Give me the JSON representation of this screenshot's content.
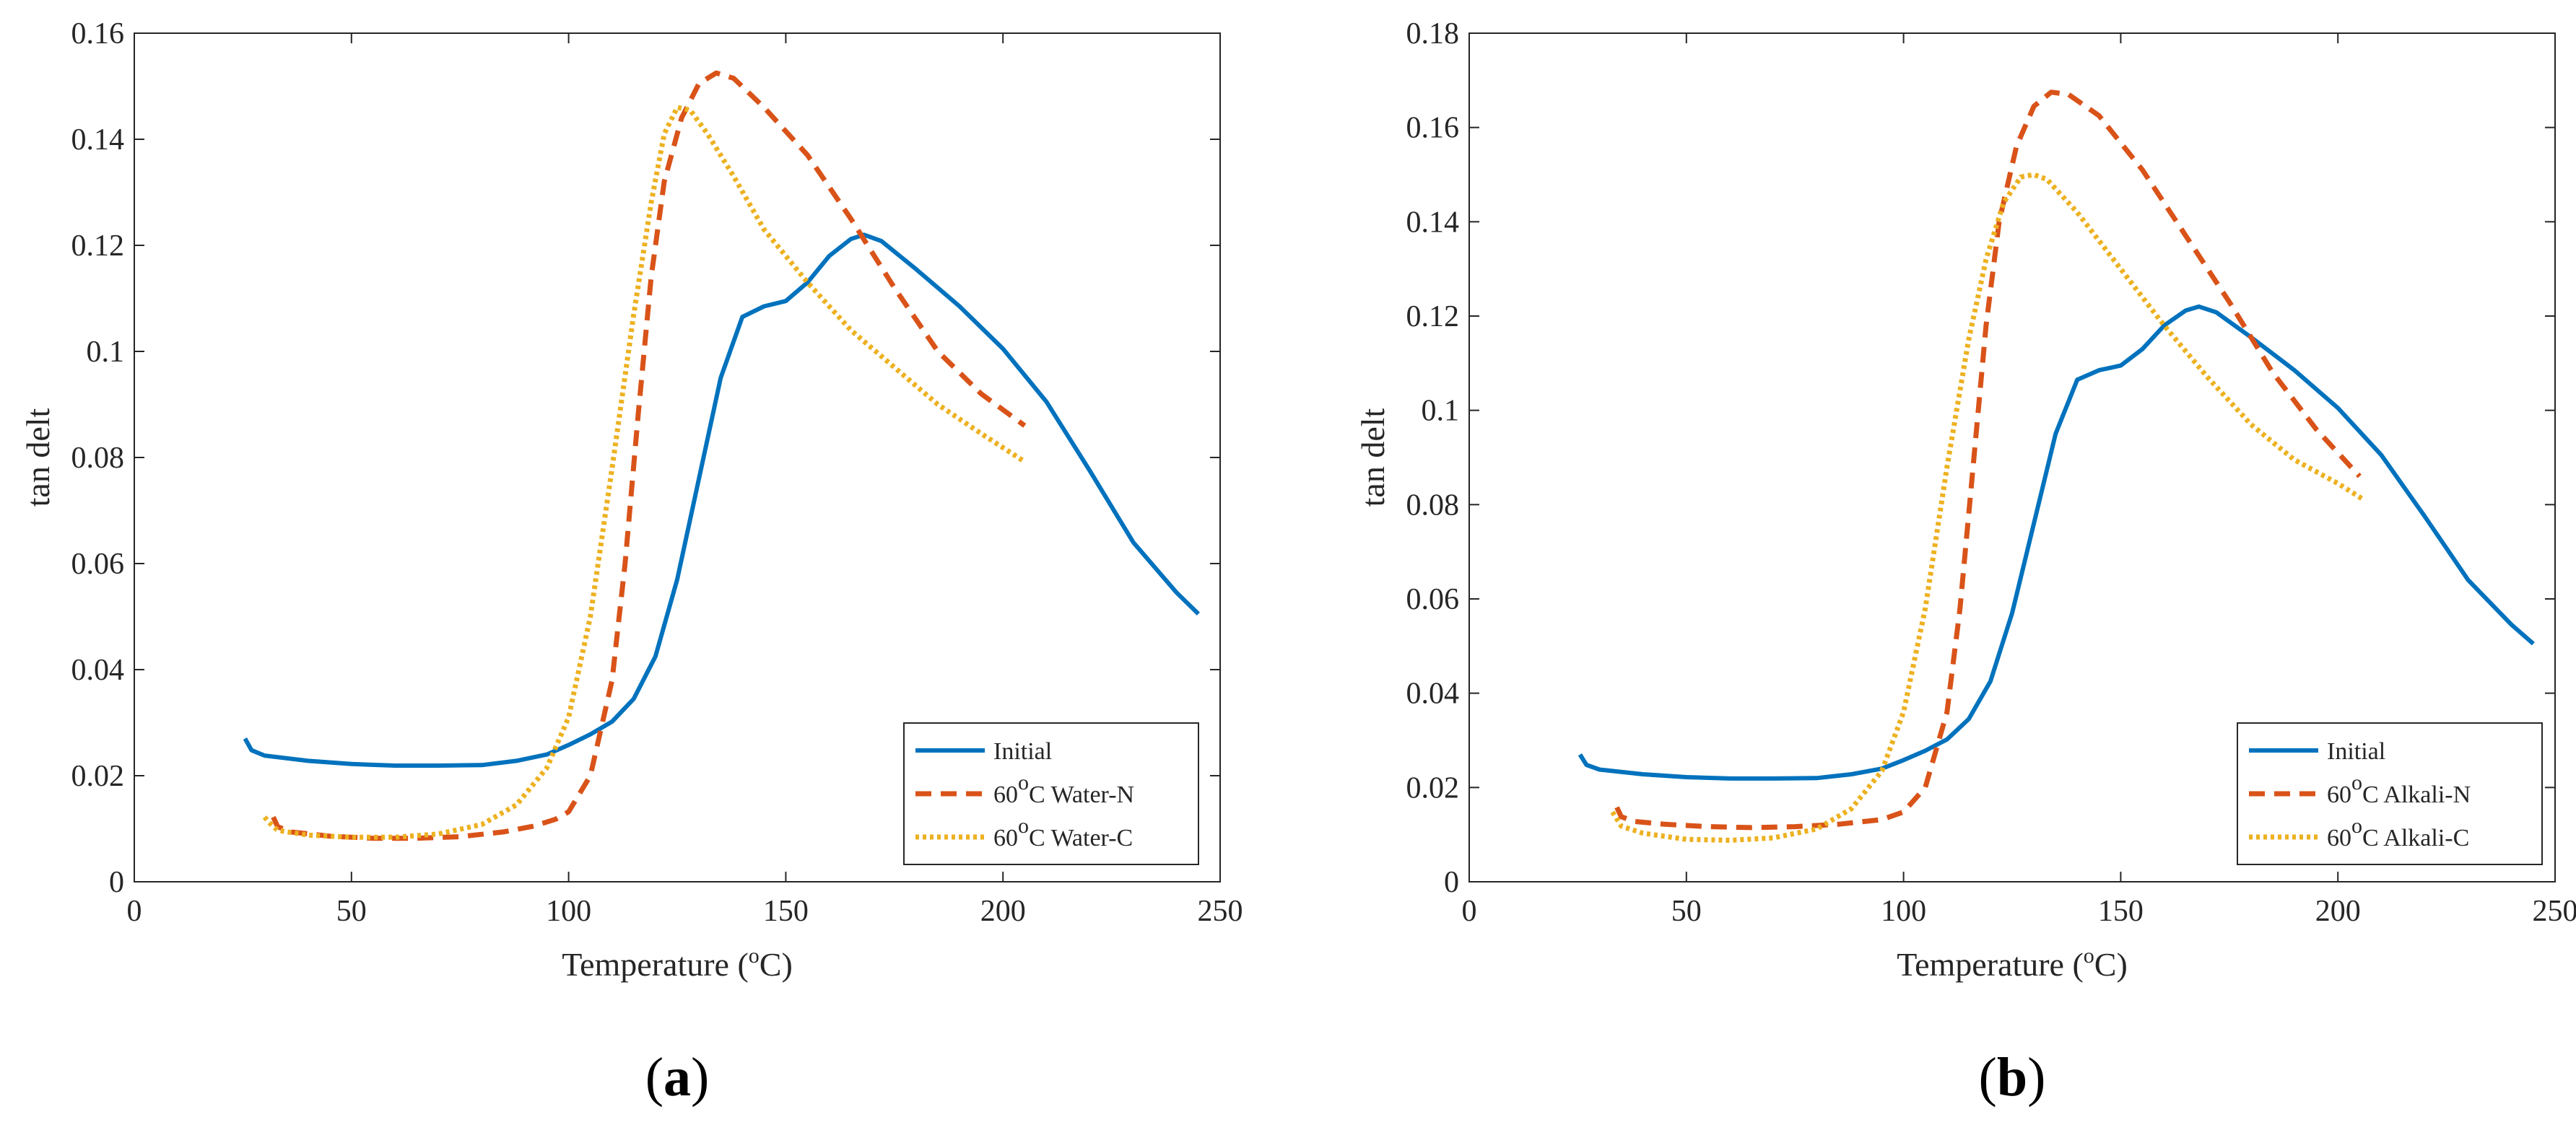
{
  "chart_data": [
    {
      "type": "line",
      "panel_label": "a",
      "xlabel": {
        "text": "Temperature (",
        "sup": "o",
        "unit": "C)"
      },
      "ylabel": "tan delt",
      "xlim": [
        0,
        250
      ],
      "ylim": [
        0,
        0.16
      ],
      "xticks": [
        0,
        50,
        100,
        150,
        200,
        250
      ],
      "xtick_labels": [
        "0",
        "50",
        "100",
        "150",
        "200",
        "250"
      ],
      "yticks": [
        0,
        0.02,
        0.04,
        0.06,
        0.08,
        0.1,
        0.12,
        0.14,
        0.16
      ],
      "ytick_labels": [
        "0",
        "0.02",
        "0.04",
        "0.06",
        "0.08",
        "0.1",
        "0.12",
        "0.14",
        "0.16"
      ],
      "grid": false,
      "legend_position": "bottom-right",
      "series": [
        {
          "name": "Initial",
          "legend": {
            "pre": "Initial",
            "sup": "",
            "post": ""
          },
          "color": "#0072BD",
          "style": "solid",
          "points": [
            [
              25.5,
              0.027
            ],
            [
              27,
              0.0248
            ],
            [
              30,
              0.0238
            ],
            [
              40,
              0.0228
            ],
            [
              50,
              0.0222
            ],
            [
              60,
              0.0219
            ],
            [
              70,
              0.0219
            ],
            [
              80,
              0.022
            ],
            [
              88,
              0.0228
            ],
            [
              95,
              0.024
            ],
            [
              100,
              0.0258
            ],
            [
              105,
              0.0278
            ],
            [
              110,
              0.0302
            ],
            [
              115,
              0.0345
            ],
            [
              120,
              0.0425
            ],
            [
              125,
              0.057
            ],
            [
              130,
              0.076
            ],
            [
              135,
              0.095
            ],
            [
              140,
              0.1065
            ],
            [
              145,
              0.1085
            ],
            [
              150,
              0.1095
            ],
            [
              155,
              0.113
            ],
            [
              160,
              0.118
            ],
            [
              165,
              0.1212
            ],
            [
              168,
              0.122
            ],
            [
              172,
              0.1208
            ],
            [
              180,
              0.1155
            ],
            [
              190,
              0.1085
            ],
            [
              200,
              0.1005
            ],
            [
              210,
              0.0905
            ],
            [
              220,
              0.0775
            ],
            [
              230,
              0.064
            ],
            [
              240,
              0.0545
            ],
            [
              245,
              0.0505
            ]
          ]
        },
        {
          "name": "60°C Water-N",
          "legend": {
            "pre": "60",
            "sup": "o",
            "post": "C Water-N"
          },
          "color": "#D95319",
          "style": "dashed",
          "points": [
            [
              32,
              0.0122
            ],
            [
              33,
              0.0104
            ],
            [
              36,
              0.0094
            ],
            [
              45,
              0.0086
            ],
            [
              55,
              0.0082
            ],
            [
              65,
              0.0082
            ],
            [
              75,
              0.0085
            ],
            [
              85,
              0.0094
            ],
            [
              92,
              0.0105
            ],
            [
              97,
              0.0118
            ],
            [
              100,
              0.0132
            ],
            [
              105,
              0.02
            ],
            [
              110,
              0.038
            ],
            [
              113,
              0.06
            ],
            [
              116,
              0.088
            ],
            [
              119,
              0.114
            ],
            [
              122,
              0.132
            ],
            [
              126,
              0.144
            ],
            [
              130,
              0.1505
            ],
            [
              134,
              0.1525
            ],
            [
              138,
              0.1515
            ],
            [
              145,
              0.146
            ],
            [
              155,
              0.137
            ],
            [
              165,
              0.125
            ],
            [
              175,
              0.112
            ],
            [
              185,
              0.1
            ],
            [
              195,
              0.092
            ],
            [
              205,
              0.086
            ]
          ]
        },
        {
          "name": "60°C Water-C",
          "legend": {
            "pre": "60",
            "sup": "o",
            "post": "C Water-C"
          },
          "color": "#EDB120",
          "style": "dotted",
          "points": [
            [
              30,
              0.0122
            ],
            [
              31,
              0.0112
            ],
            [
              33,
              0.0097
            ],
            [
              40,
              0.0088
            ],
            [
              50,
              0.0084
            ],
            [
              60,
              0.0084
            ],
            [
              70,
              0.009
            ],
            [
              80,
              0.0108
            ],
            [
              88,
              0.0145
            ],
            [
              95,
              0.0215
            ],
            [
              100,
              0.031
            ],
            [
              105,
              0.05
            ],
            [
              110,
              0.078
            ],
            [
              115,
              0.107
            ],
            [
              119,
              0.128
            ],
            [
              122,
              0.141
            ],
            [
              125,
              0.146
            ],
            [
              128,
              0.1455
            ],
            [
              132,
              0.141
            ],
            [
              138,
              0.133
            ],
            [
              145,
              0.123
            ],
            [
              155,
              0.113
            ],
            [
              165,
              0.104
            ],
            [
              175,
              0.097
            ],
            [
              185,
              0.09
            ],
            [
              195,
              0.0845
            ],
            [
              205,
              0.0792
            ]
          ]
        }
      ]
    },
    {
      "type": "line",
      "panel_label": "b",
      "xlabel": {
        "text": "Temperature (",
        "sup": "o",
        "unit": "C)"
      },
      "ylabel": "tan delt",
      "xlim": [
        0,
        250
      ],
      "ylim": [
        0,
        0.18
      ],
      "xticks": [
        0,
        50,
        100,
        150,
        200,
        250
      ],
      "xtick_labels": [
        "0",
        "50",
        "100",
        "150",
        "200",
        "250"
      ],
      "yticks": [
        0,
        0.02,
        0.04,
        0.06,
        0.08,
        0.1,
        0.12,
        0.14,
        0.16,
        0.18
      ],
      "ytick_labels": [
        "0",
        "0.02",
        "0.04",
        "0.06",
        "0.08",
        "0.1",
        "0.12",
        "0.14",
        "0.16",
        "0.18"
      ],
      "grid": false,
      "legend_position": "bottom-right",
      "series": [
        {
          "name": "Initial",
          "legend": {
            "pre": "Initial",
            "sup": "",
            "post": ""
          },
          "color": "#0072BD",
          "style": "solid",
          "points": [
            [
              25.5,
              0.027
            ],
            [
              27,
              0.0248
            ],
            [
              30,
              0.0238
            ],
            [
              40,
              0.0228
            ],
            [
              50,
              0.0222
            ],
            [
              60,
              0.0219
            ],
            [
              70,
              0.0219
            ],
            [
              80,
              0.022
            ],
            [
              88,
              0.0228
            ],
            [
              95,
              0.024
            ],
            [
              100,
              0.0258
            ],
            [
              105,
              0.0278
            ],
            [
              110,
              0.0302
            ],
            [
              115,
              0.0345
            ],
            [
              120,
              0.0425
            ],
            [
              125,
              0.057
            ],
            [
              130,
              0.076
            ],
            [
              135,
              0.095
            ],
            [
              140,
              0.1065
            ],
            [
              145,
              0.1085
            ],
            [
              150,
              0.1095
            ],
            [
              155,
              0.113
            ],
            [
              160,
              0.118
            ],
            [
              165,
              0.1212
            ],
            [
              168,
              0.122
            ],
            [
              172,
              0.1208
            ],
            [
              180,
              0.1155
            ],
            [
              190,
              0.1085
            ],
            [
              200,
              0.1005
            ],
            [
              210,
              0.0905
            ],
            [
              220,
              0.0775
            ],
            [
              230,
              0.064
            ],
            [
              240,
              0.0545
            ],
            [
              245,
              0.0505
            ]
          ]
        },
        {
          "name": "60°C Alkali-N",
          "legend": {
            "pre": "60",
            "sup": "o",
            "post": "C Alkali-N"
          },
          "color": "#D95319",
          "style": "dashed",
          "points": [
            [
              34,
              0.0158
            ],
            [
              35,
              0.0138
            ],
            [
              38,
              0.0128
            ],
            [
              45,
              0.0122
            ],
            [
              55,
              0.0117
            ],
            [
              65,
              0.0115
            ],
            [
              75,
              0.0117
            ],
            [
              85,
              0.0122
            ],
            [
              95,
              0.0132
            ],
            [
              100,
              0.0148
            ],
            [
              105,
              0.02
            ],
            [
              110,
              0.036
            ],
            [
              113,
              0.058
            ],
            [
              116,
              0.088
            ],
            [
              119,
              0.118
            ],
            [
              122,
              0.14
            ],
            [
              126,
              0.156
            ],
            [
              130,
              0.1645
            ],
            [
              134,
              0.1675
            ],
            [
              138,
              0.167
            ],
            [
              145,
              0.1625
            ],
            [
              155,
              0.151
            ],
            [
              165,
              0.137
            ],
            [
              175,
              0.123
            ],
            [
              185,
              0.108
            ],
            [
              195,
              0.096
            ],
            [
              205,
              0.086
            ]
          ]
        },
        {
          "name": "60°C Alkali-C",
          "legend": {
            "pre": "60",
            "sup": "o",
            "post": "C Alkali-C"
          },
          "color": "#EDB120",
          "style": "dotted",
          "points": [
            [
              33,
              0.0148
            ],
            [
              35,
              0.0118
            ],
            [
              40,
              0.0103
            ],
            [
              50,
              0.009
            ],
            [
              60,
              0.0088
            ],
            [
              70,
              0.0093
            ],
            [
              80,
              0.0112
            ],
            [
              88,
              0.0155
            ],
            [
              95,
              0.0235
            ],
            [
              100,
              0.036
            ],
            [
              105,
              0.058
            ],
            [
              110,
              0.088
            ],
            [
              115,
              0.115
            ],
            [
              119,
              0.132
            ],
            [
              123,
              0.144
            ],
            [
              127,
              0.1495
            ],
            [
              130,
              0.15
            ],
            [
              133,
              0.149
            ],
            [
              140,
              0.142
            ],
            [
              150,
              0.13
            ],
            [
              160,
              0.118
            ],
            [
              170,
              0.107
            ],
            [
              180,
              0.097
            ],
            [
              190,
              0.0895
            ],
            [
              200,
              0.0845
            ],
            [
              206,
              0.081
            ]
          ]
        }
      ]
    }
  ]
}
